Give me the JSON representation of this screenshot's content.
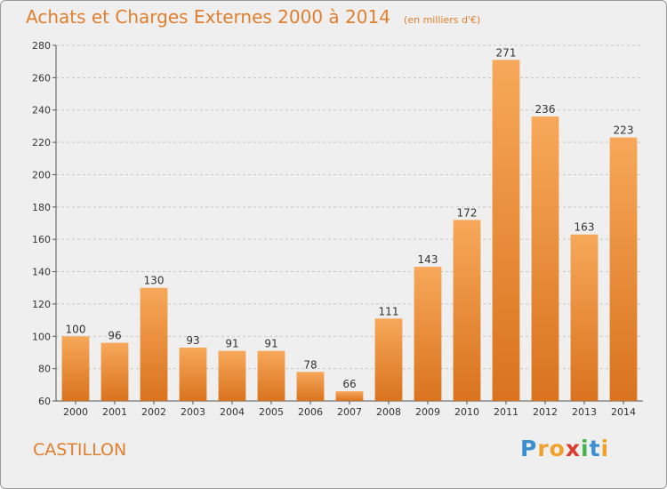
{
  "chart_data": {
    "type": "bar",
    "title": "Achats et Charges Externes 2000 à 2014",
    "subtitle": "(en milliers d'€)",
    "categories": [
      "2000",
      "2001",
      "2002",
      "2003",
      "2004",
      "2005",
      "2006",
      "2007",
      "2008",
      "2009",
      "2010",
      "2011",
      "2012",
      "2013",
      "2014"
    ],
    "values": [
      100,
      96,
      130,
      93,
      91,
      91,
      78,
      66,
      111,
      143,
      172,
      271,
      236,
      163,
      223
    ],
    "ylim": [
      60,
      280
    ],
    "yticks": [
      60,
      80,
      100,
      120,
      140,
      160,
      180,
      200,
      220,
      240,
      260,
      280
    ],
    "xlabel": "",
    "ylabel": "",
    "grid": true,
    "bar_color_top": "#f7a85a",
    "bar_color_bottom": "#d9731e"
  },
  "municipality": "CASTILLON",
  "logo": {
    "text": "Proxiti",
    "letters": [
      "P",
      "r",
      "o",
      "x",
      "i",
      "t",
      "i"
    ],
    "colors": [
      "#3a8fd0",
      "#f0a12a",
      "#f0a12a",
      "#e03a2e",
      "#4ab04a",
      "#3a8fd0",
      "#f0a12a"
    ]
  }
}
